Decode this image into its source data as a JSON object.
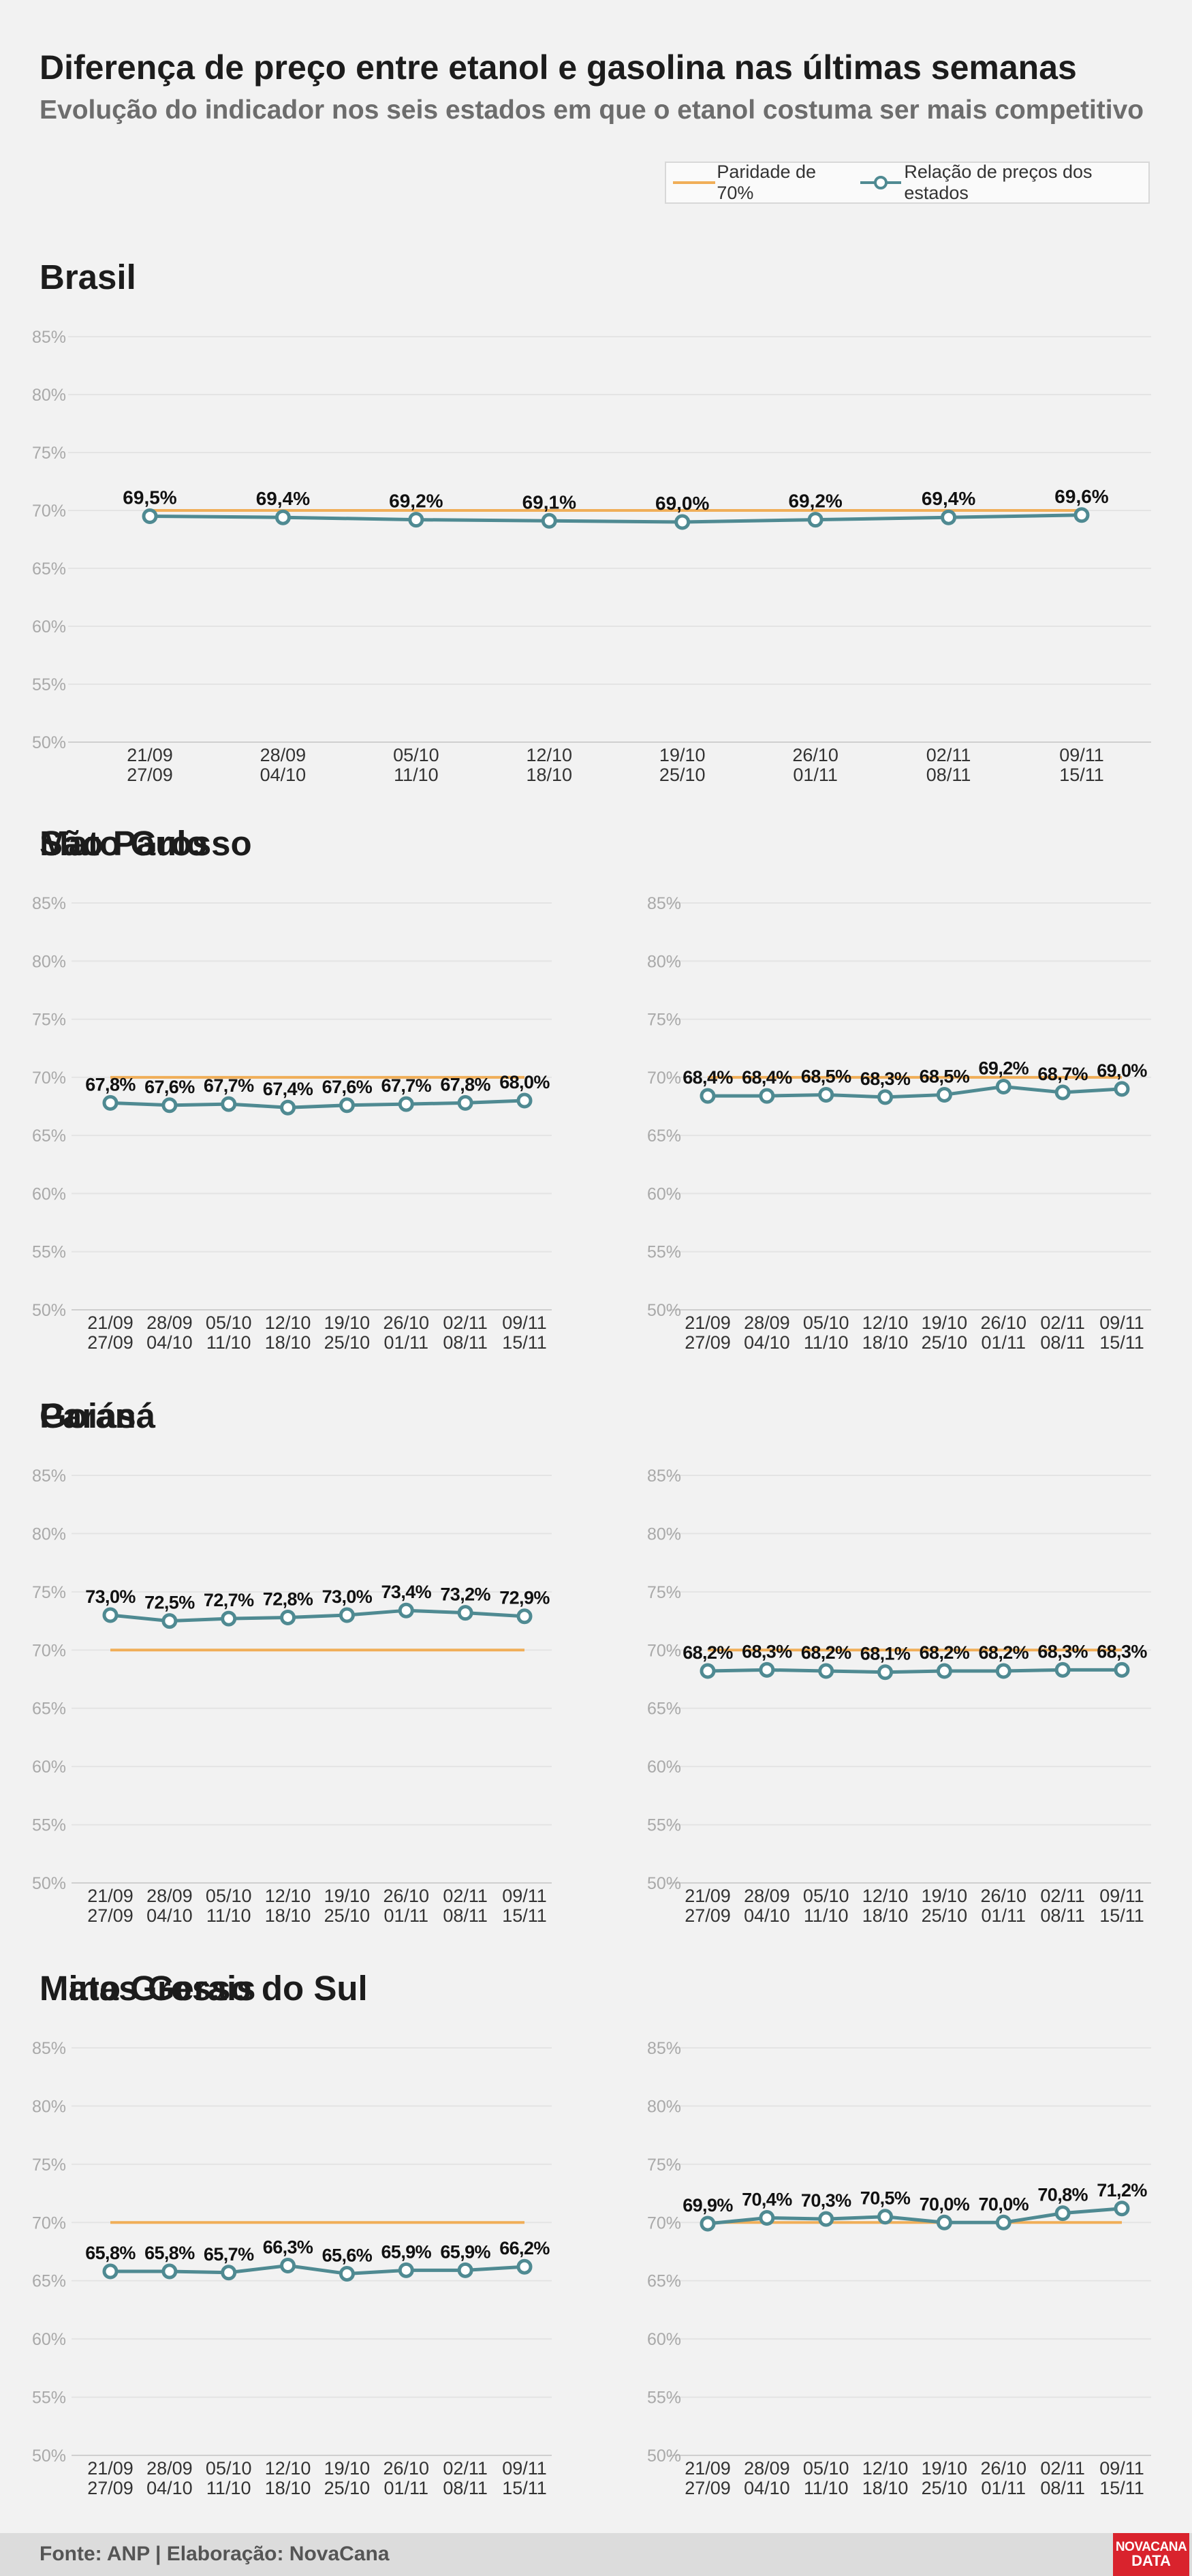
{
  "header": {
    "title": "Diferença de preço entre etanol e gasolina nas últimas semanas",
    "subtitle": "Evolução do indicador nos seis estados em que o etanol costuma ser mais competitivo"
  },
  "legend": {
    "parity_label": "Paridade de 70%",
    "series_label": "Relação de preços dos estados"
  },
  "colors": {
    "parity": "#f0ae58",
    "series": "#4f8a92",
    "brand": "#d9232d"
  },
  "footer": {
    "source": "Fonte: ANP | Elaboração: NovaCana",
    "brand_line1": "NOVACANA",
    "brand_line2": "DATA"
  },
  "chart_data": [
    {
      "type": "line",
      "title": "Brasil",
      "categories": [
        [
          "21/09",
          "27/09"
        ],
        [
          "28/09",
          "04/10"
        ],
        [
          "05/10",
          "11/10"
        ],
        [
          "12/10",
          "18/10"
        ],
        [
          "19/10",
          "25/10"
        ],
        [
          "26/10",
          "01/11"
        ],
        [
          "02/11",
          "08/11"
        ],
        [
          "09/11",
          "15/11"
        ]
      ],
      "values": [
        69.5,
        69.4,
        69.2,
        69.1,
        69.0,
        69.2,
        69.4,
        69.6
      ],
      "labels": [
        "69,5%",
        "69,4%",
        "69,2%",
        "69,1%",
        "69,0%",
        "69,2%",
        "69,4%",
        "69,6%"
      ],
      "parity": 70,
      "ylim": [
        50,
        85
      ],
      "yticks": [
        "50%",
        "55%",
        "60%",
        "65%",
        "70%",
        "75%",
        "80%",
        "85%"
      ]
    },
    {
      "type": "line",
      "title": "São Paulo",
      "categories": [
        [
          "21/09",
          "27/09"
        ],
        [
          "28/09",
          "04/10"
        ],
        [
          "05/10",
          "11/10"
        ],
        [
          "12/10",
          "18/10"
        ],
        [
          "19/10",
          "25/10"
        ],
        [
          "26/10",
          "01/11"
        ],
        [
          "02/11",
          "08/11"
        ],
        [
          "09/11",
          "15/11"
        ]
      ],
      "values": [
        67.8,
        67.6,
        67.7,
        67.4,
        67.6,
        67.7,
        67.8,
        68.0
      ],
      "labels": [
        "67,8%",
        "67,6%",
        "67,7%",
        "67,4%",
        "67,6%",
        "67,7%",
        "67,8%",
        "68,0%"
      ],
      "parity": 70,
      "ylim": [
        50,
        85
      ],
      "yticks": [
        "50%",
        "55%",
        "60%",
        "65%",
        "70%",
        "75%",
        "80%",
        "85%"
      ]
    },
    {
      "type": "line",
      "title": "Mato Grosso",
      "categories": [
        [
          "21/09",
          "27/09"
        ],
        [
          "28/09",
          "04/10"
        ],
        [
          "05/10",
          "11/10"
        ],
        [
          "12/10",
          "18/10"
        ],
        [
          "19/10",
          "25/10"
        ],
        [
          "26/10",
          "01/11"
        ],
        [
          "02/11",
          "08/11"
        ],
        [
          "09/11",
          "15/11"
        ]
      ],
      "values": [
        68.4,
        68.4,
        68.5,
        68.3,
        68.5,
        69.2,
        68.7,
        69.0
      ],
      "labels": [
        "68,4%",
        "68,4%",
        "68,5%",
        "68,3%",
        "68,5%",
        "69,2%",
        "68,7%",
        "69,0%"
      ],
      "parity": 70,
      "ylim": [
        50,
        85
      ],
      "yticks": [
        "50%",
        "55%",
        "60%",
        "65%",
        "70%",
        "75%",
        "80%",
        "85%"
      ]
    },
    {
      "type": "line",
      "title": "Goiás",
      "categories": [
        [
          "21/09",
          "27/09"
        ],
        [
          "28/09",
          "04/10"
        ],
        [
          "05/10",
          "11/10"
        ],
        [
          "12/10",
          "18/10"
        ],
        [
          "19/10",
          "25/10"
        ],
        [
          "26/10",
          "01/11"
        ],
        [
          "02/11",
          "08/11"
        ],
        [
          "09/11",
          "15/11"
        ]
      ],
      "values": [
        73.0,
        72.5,
        72.7,
        72.8,
        73.0,
        73.4,
        73.2,
        72.9
      ],
      "labels": [
        "73,0%",
        "72,5%",
        "72,7%",
        "72,8%",
        "73,0%",
        "73,4%",
        "73,2%",
        "72,9%"
      ],
      "parity": 70,
      "ylim": [
        50,
        85
      ],
      "yticks": [
        "50%",
        "55%",
        "60%",
        "65%",
        "70%",
        "75%",
        "80%",
        "85%"
      ]
    },
    {
      "type": "line",
      "title": "Paraná",
      "categories": [
        [
          "21/09",
          "27/09"
        ],
        [
          "28/09",
          "04/10"
        ],
        [
          "05/10",
          "11/10"
        ],
        [
          "12/10",
          "18/10"
        ],
        [
          "19/10",
          "25/10"
        ],
        [
          "26/10",
          "01/11"
        ],
        [
          "02/11",
          "08/11"
        ],
        [
          "09/11",
          "15/11"
        ]
      ],
      "values": [
        68.2,
        68.3,
        68.2,
        68.1,
        68.2,
        68.2,
        68.3,
        68.3
      ],
      "labels": [
        "68,2%",
        "68,3%",
        "68,2%",
        "68,1%",
        "68,2%",
        "68,2%",
        "68,3%",
        "68,3%"
      ],
      "parity": 70,
      "ylim": [
        50,
        85
      ],
      "yticks": [
        "50%",
        "55%",
        "60%",
        "65%",
        "70%",
        "75%",
        "80%",
        "85%"
      ]
    },
    {
      "type": "line",
      "title": "Mato Grosso do Sul",
      "categories": [
        [
          "21/09",
          "27/09"
        ],
        [
          "28/09",
          "04/10"
        ],
        [
          "05/10",
          "11/10"
        ],
        [
          "12/10",
          "18/10"
        ],
        [
          "19/10",
          "25/10"
        ],
        [
          "26/10",
          "01/11"
        ],
        [
          "02/11",
          "08/11"
        ],
        [
          "09/11",
          "15/11"
        ]
      ],
      "values": [
        65.8,
        65.8,
        65.7,
        66.3,
        65.6,
        65.9,
        65.9,
        66.2
      ],
      "labels": [
        "65,8%",
        "65,8%",
        "65,7%",
        "66,3%",
        "65,6%",
        "65,9%",
        "65,9%",
        "66,2%"
      ],
      "parity": 70,
      "ylim": [
        50,
        85
      ],
      "yticks": [
        "50%",
        "55%",
        "60%",
        "65%",
        "70%",
        "75%",
        "80%",
        "85%"
      ]
    },
    {
      "type": "line",
      "title": "Minas Gerais",
      "categories": [
        [
          "21/09",
          "27/09"
        ],
        [
          "28/09",
          "04/10"
        ],
        [
          "05/10",
          "11/10"
        ],
        [
          "12/10",
          "18/10"
        ],
        [
          "19/10",
          "25/10"
        ],
        [
          "26/10",
          "01/11"
        ],
        [
          "02/11",
          "08/11"
        ],
        [
          "09/11",
          "15/11"
        ]
      ],
      "values": [
        69.9,
        70.4,
        70.3,
        70.5,
        70.0,
        70.0,
        70.8,
        71.2
      ],
      "labels": [
        "69,9%",
        "70,4%",
        "70,3%",
        "70,5%",
        "70,0%",
        "70,0%",
        "70,8%",
        "71,2%"
      ],
      "parity": 70,
      "ylim": [
        50,
        85
      ],
      "yticks": [
        "50%",
        "55%",
        "60%",
        "65%",
        "70%",
        "75%",
        "80%",
        "85%"
      ]
    }
  ]
}
